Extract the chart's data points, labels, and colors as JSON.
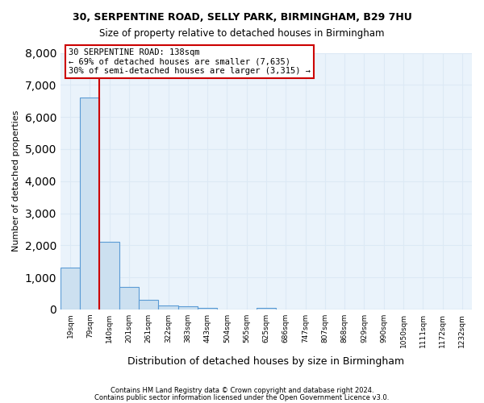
{
  "title1": "30, SERPENTINE ROAD, SELLY PARK, BIRMINGHAM, B29 7HU",
  "title2": "Size of property relative to detached houses in Birmingham",
  "xlabel": "Distribution of detached houses by size in Birmingham",
  "ylabel": "Number of detached properties",
  "footnote1": "Contains HM Land Registry data © Crown copyright and database right 2024.",
  "footnote2": "Contains public sector information licensed under the Open Government Licence v3.0.",
  "bin_labels": [
    "19sqm",
    "79sqm",
    "140sqm",
    "201sqm",
    "261sqm",
    "322sqm",
    "383sqm",
    "443sqm",
    "504sqm",
    "565sqm",
    "625sqm",
    "686sqm",
    "747sqm",
    "807sqm",
    "868sqm",
    "929sqm",
    "990sqm",
    "1050sqm",
    "1111sqm",
    "1172sqm",
    "1232sqm"
  ],
  "bar_values": [
    1300,
    6600,
    2100,
    700,
    300,
    130,
    90,
    60,
    0,
    0,
    60,
    0,
    0,
    0,
    0,
    0,
    0,
    0,
    0,
    0,
    0
  ],
  "bar_color": "#cce0f0",
  "bar_edge_color": "#5b9bd5",
  "grid_color": "#dce9f5",
  "background_color": "#eaf3fb",
  "vline_x_index": 2,
  "vline_color": "#cc0000",
  "annotation_text": "30 SERPENTINE ROAD: 138sqm\n← 69% of detached houses are smaller (7,635)\n30% of semi-detached houses are larger (3,315) →",
  "annotation_box_color": "white",
  "annotation_box_edge": "#cc0000",
  "ylim": [
    0,
    8000
  ],
  "yticks": [
    0,
    1000,
    2000,
    3000,
    4000,
    5000,
    6000,
    7000,
    8000
  ]
}
